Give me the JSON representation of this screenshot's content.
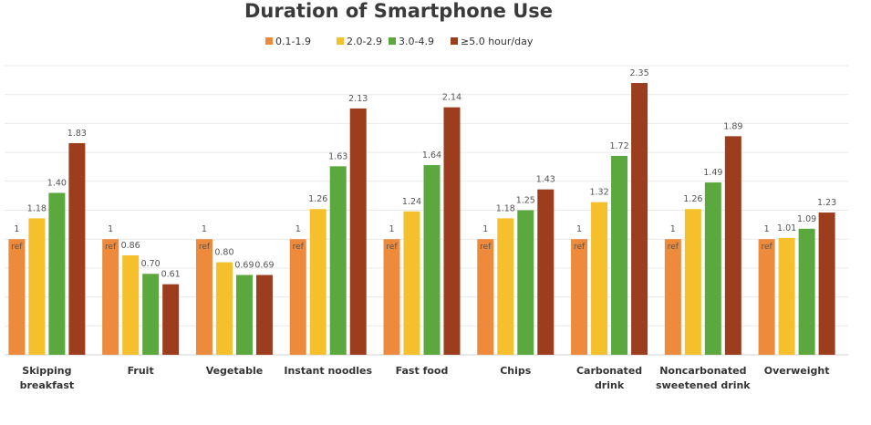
{
  "chart_data": {
    "type": "bar",
    "title": "Duration of Smartphone Use",
    "categories": [
      [
        "Skipping",
        "breakfast"
      ],
      [
        "Fruit"
      ],
      [
        "Vegetable"
      ],
      [
        "Instant noodles"
      ],
      [
        "Fast food"
      ],
      [
        "Chips"
      ],
      [
        "Carbonated",
        "drink"
      ],
      [
        "Noncarbonated",
        "sweetened drink"
      ],
      [
        "Overweight"
      ]
    ],
    "series": [
      {
        "name": "0.1-1.9",
        "color": "#ee8a3c",
        "values": [
          1,
          1,
          1,
          1,
          1,
          1,
          1,
          1,
          1
        ],
        "labels": [
          "1",
          "1",
          "1",
          "1",
          "1",
          "1",
          "1",
          "1",
          "1"
        ]
      },
      {
        "name": "2.0-2.9",
        "color": "#f5c02c",
        "values": [
          1.18,
          0.86,
          0.8,
          1.26,
          1.24,
          1.18,
          1.32,
          1.26,
          1.01
        ],
        "labels": [
          "1.18",
          "0.86",
          "0.80",
          "1.26",
          "1.24",
          "1.18",
          "1.32",
          "1.26",
          "1.01"
        ]
      },
      {
        "name": "3.0-4.9",
        "color": "#5aa83e",
        "values": [
          1.4,
          0.7,
          0.69,
          1.63,
          1.64,
          1.25,
          1.72,
          1.49,
          1.09
        ],
        "labels": [
          "1.40",
          "0.70",
          "0.69",
          "1.63",
          "1.64",
          "1.25",
          "1.72",
          "1.49",
          "1.09"
        ]
      },
      {
        "name": "≥5.0 hour/day",
        "color": "#9c3e1e",
        "values": [
          1.83,
          0.61,
          0.69,
          2.13,
          2.14,
          1.43,
          2.35,
          1.89,
          1.23
        ],
        "labels": [
          "1.83",
          "0.61",
          "0.69",
          "2.13",
          "2.14",
          "1.43",
          "2.35",
          "1.89",
          "1.23"
        ]
      }
    ],
    "reference_label": "ref",
    "ylim": [
      0,
      2.5
    ],
    "grid": true,
    "legend_position": "top-center"
  }
}
